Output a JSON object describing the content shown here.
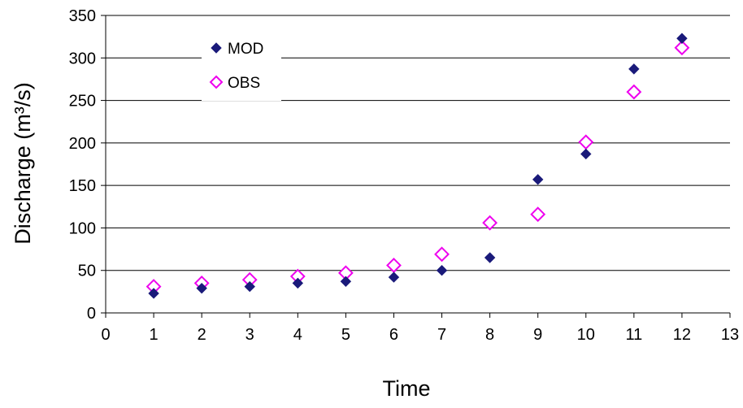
{
  "chart_data": {
    "type": "scatter",
    "title": "",
    "xlabel": "Time",
    "ylabel": "Discharge (m³/s)",
    "xlim": [
      0,
      13
    ],
    "ylim": [
      0,
      350
    ],
    "x_ticks": [
      0,
      1,
      2,
      3,
      4,
      5,
      6,
      7,
      8,
      9,
      10,
      11,
      12,
      13
    ],
    "y_ticks": [
      0,
      50,
      100,
      150,
      200,
      250,
      300,
      350
    ],
    "grid": "horizontal",
    "legend_position": "top-left",
    "series": [
      {
        "name": "MOD",
        "marker": "filled-diamond",
        "color": "#1a1a7a",
        "x": [
          1,
          2,
          3,
          4,
          5,
          6,
          7,
          8,
          9,
          10,
          11,
          12
        ],
        "y": [
          23,
          29,
          31,
          35,
          37,
          42,
          50,
          65,
          157,
          187,
          287,
          323
        ]
      },
      {
        "name": "OBS",
        "marker": "open-diamond",
        "color": "#ee00ee",
        "x": [
          1,
          2,
          3,
          4,
          5,
          6,
          7,
          8,
          9,
          10,
          11,
          12
        ],
        "y": [
          31,
          35,
          39,
          43,
          47,
          56,
          69,
          106,
          116,
          201,
          260,
          312
        ]
      }
    ]
  }
}
